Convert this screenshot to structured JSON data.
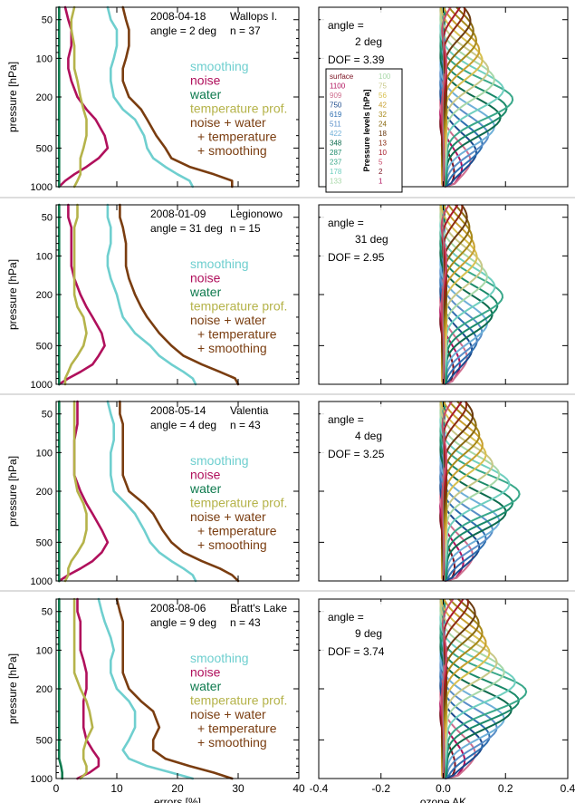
{
  "colors": {
    "smoothing": "#6fcfcf",
    "noise": "#b0105c",
    "water": "#0e7a4e",
    "temperature": "#b5b34a",
    "total": "#7a3d10",
    "ak_palette": [
      "#7a1020",
      "#b0105c",
      "#cf6f8f",
      "#1a4a8c",
      "#2f6fb0",
      "#5a8fc8",
      "#6fb0d8",
      "#0e6b4e",
      "#1b8a6a",
      "#3aa88a",
      "#6fcfbf",
      "#a8d8a8",
      "#c8c888",
      "#d8c050",
      "#c8a030",
      "#a88a1a",
      "#8a6a10",
      "#6a3a10",
      "#8a2a10",
      "#a81a2a",
      "#c84a6a"
    ]
  },
  "left_axis": {
    "ylabel": "pressure [hPa]",
    "yticks": [
      "50",
      "100",
      "200",
      "500",
      "1000"
    ],
    "xlabel": "errors [%]",
    "xticks": [
      "0",
      "10",
      "20",
      "30",
      "40"
    ]
  },
  "right_axis": {
    "xlabel": "ozone AK",
    "xticks": [
      "-0.4",
      "-0.2",
      "0.0",
      "0.2",
      "0.4"
    ]
  },
  "legend": {
    "smoothing": "smoothing",
    "noise": "noise",
    "water": "water",
    "temperature": "temperature prof.",
    "total_1": "noise + water",
    "total_2": "+ temperature",
    "total_3": "+ smoothing"
  },
  "pressure_legend": {
    "title": "Pressure levels [hPa]",
    "col1": [
      "surface",
      "1100",
      "909",
      "750",
      "619",
      "511",
      "422",
      "348",
      "287",
      "237",
      "178",
      "133"
    ],
    "col2": [
      "100",
      "75",
      "56",
      "42",
      "32",
      "24",
      "18",
      "13",
      "10",
      "5",
      "2",
      "1"
    ]
  },
  "panels": [
    {
      "date": "2008-04-18",
      "station": "Wallops I.",
      "angle_line": "angle = 2 deg",
      "n": "n = 37",
      "ak_angle": "angle =",
      "ak_deg": "2 deg",
      "dof": "DOF =  3.39"
    },
    {
      "date": "2008-01-09",
      "station": "Legionowo",
      "angle_line": "angle = 31 deg",
      "n": "n = 15",
      "ak_angle": "angle =",
      "ak_deg": "31 deg",
      "dof": "DOF =  2.95"
    },
    {
      "date": "2008-05-14",
      "station": "Valentia",
      "angle_line": "angle = 4 deg",
      "n": "n = 43",
      "ak_angle": "angle =",
      "ak_deg": "4 deg",
      "dof": "DOF =  3.25"
    },
    {
      "date": "2008-08-06",
      "station": "Bratt's Lake",
      "angle_line": "angle = 9 deg",
      "n": "n = 43",
      "ak_angle": "angle =",
      "ak_deg": "9 deg",
      "dof": "DOF =  3.74"
    }
  ],
  "chart_data": [
    {
      "type": "line",
      "title": "2008-04-18 Wallops I.",
      "xlim": [
        0,
        40
      ],
      "y_scale": "log",
      "ylim": [
        1000,
        40
      ],
      "y": [
        1000,
        900,
        800,
        700,
        600,
        500,
        400,
        300,
        250,
        200,
        150,
        120,
        100,
        80,
        60,
        50,
        40
      ],
      "series": [
        {
          "name": "smoothing",
          "x": [
            22.5,
            22,
            20,
            18,
            16,
            15,
            14.5,
            13,
            11,
            9.5,
            9,
            9,
            9.5,
            10,
            10,
            9,
            8.5
          ]
        },
        {
          "name": "noise",
          "x": [
            0.5,
            1.5,
            3,
            5,
            7,
            8.5,
            8,
            6.5,
            5,
            3.5,
            2.5,
            2,
            2,
            2.5,
            2.5,
            2,
            1.5
          ]
        },
        {
          "name": "water",
          "x": [
            0.5,
            0.5,
            0.5,
            0.5,
            0.5,
            0.5,
            0.5,
            0.5,
            0.5,
            0.5,
            0.5,
            0.5,
            0.5,
            0.5,
            0.5,
            0.5,
            0.5
          ]
        },
        {
          "name": "temperature prof.",
          "x": [
            3,
            3.5,
            4,
            4,
            4,
            4.5,
            5,
            5,
            4.5,
            4,
            3.5,
            3,
            3,
            3,
            2.5,
            2.5,
            3
          ]
        },
        {
          "name": "noise + water + temperature + smoothing",
          "x": [
            29,
            29,
            26,
            22,
            19,
            18,
            16.5,
            15,
            14,
            12,
            11,
            11,
            11.5,
            12,
            12,
            11.5,
            11
          ]
        }
      ]
    },
    {
      "type": "line",
      "title": "2008-01-09 Legionowo",
      "xlim": [
        0,
        40
      ],
      "y_scale": "log",
      "ylim": [
        1000,
        40
      ],
      "y": [
        1000,
        900,
        800,
        700,
        600,
        500,
        400,
        300,
        250,
        200,
        150,
        120,
        100,
        80,
        60,
        50,
        40
      ],
      "series": [
        {
          "name": "smoothing",
          "x": [
            23,
            22.5,
            21,
            19,
            17,
            15.5,
            13,
            11,
            10.5,
            10,
            9,
            8.5,
            8.5,
            9,
            9,
            8.5,
            8.5
          ]
        },
        {
          "name": "noise",
          "x": [
            0.5,
            2,
            4,
            6,
            7,
            8,
            7.5,
            6,
            5,
            4,
            3,
            2.5,
            2.5,
            2.5,
            2.5,
            2,
            2
          ]
        },
        {
          "name": "water",
          "x": [
            0.5,
            0.5,
            0.5,
            0.5,
            0.5,
            0.5,
            0.5,
            0.5,
            0.5,
            0.5,
            0.5,
            0.5,
            0.5,
            0.5,
            0.5,
            0.5,
            0.5
          ]
        },
        {
          "name": "temperature prof.",
          "x": [
            1.5,
            1.5,
            2,
            2.5,
            3.5,
            4.5,
            5,
            4.5,
            3.5,
            3,
            3,
            3,
            3,
            3,
            3,
            3.5,
            3.5
          ]
        },
        {
          "name": "noise + water + temperature + smoothing",
          "x": [
            30,
            29.5,
            27,
            24,
            21,
            19,
            17,
            15,
            14,
            13,
            12,
            11.5,
            11.5,
            11.5,
            11,
            10.5,
            10.5
          ]
        }
      ]
    },
    {
      "type": "line",
      "title": "2008-05-14 Valentia",
      "xlim": [
        0,
        40
      ],
      "y_scale": "log",
      "ylim": [
        1000,
        40
      ],
      "y": [
        1000,
        900,
        800,
        700,
        600,
        500,
        400,
        300,
        250,
        200,
        150,
        120,
        100,
        80,
        60,
        50,
        40
      ],
      "series": [
        {
          "name": "smoothing",
          "x": [
            23,
            22.5,
            21,
            19,
            17,
            15.5,
            14.5,
            13,
            11.5,
            9.5,
            9,
            9,
            9,
            9.5,
            9.5,
            9,
            8.5
          ]
        },
        {
          "name": "noise",
          "x": [
            0.5,
            2,
            4,
            6,
            7.5,
            8.5,
            7.5,
            6,
            5,
            4,
            3,
            3,
            3,
            3,
            3.5,
            3.5,
            3.5
          ]
        },
        {
          "name": "water",
          "x": [
            0.5,
            0.5,
            0.5,
            0.5,
            0.5,
            0.5,
            0.5,
            0.5,
            0.5,
            0.5,
            0.5,
            0.5,
            0.5,
            0.5,
            0.5,
            0.5,
            0.5
          ]
        },
        {
          "name": "temperature prof.",
          "x": [
            1.5,
            2,
            2,
            2.5,
            3.5,
            4.5,
            5,
            5,
            4.5,
            3.5,
            3,
            3,
            3,
            3,
            3,
            3,
            3
          ]
        },
        {
          "name": "noise + water + temperature + smoothing",
          "x": [
            30,
            29,
            27,
            24,
            21,
            19,
            17.5,
            16,
            14.5,
            12,
            11,
            11,
            11,
            11,
            11,
            10.5,
            10.5
          ]
        }
      ]
    },
    {
      "type": "line",
      "title": "2008-08-06 Bratt's Lake",
      "xlim": [
        0,
        40
      ],
      "y_scale": "log",
      "ylim": [
        1000,
        40
      ],
      "y": [
        1000,
        900,
        800,
        700,
        600,
        500,
        400,
        300,
        250,
        200,
        150,
        120,
        100,
        80,
        60,
        50,
        40
      ],
      "series": [
        {
          "name": "smoothing",
          "x": [
            22.5,
            19,
            15,
            12,
            11,
            12,
            13,
            13,
            12,
            10,
            9,
            9,
            9.5,
            9,
            8,
            7.5,
            7
          ]
        },
        {
          "name": "noise",
          "x": [
            3.5,
            5.5,
            7,
            7,
            6,
            5,
            4.5,
            4.5,
            4.5,
            5,
            5,
            4.5,
            4,
            4,
            4,
            3.5,
            3.5
          ]
        },
        {
          "name": "water",
          "x": [
            1,
            1,
            0.8,
            0.5,
            0.5,
            0.5,
            0.5,
            0.5,
            0.5,
            0.5,
            0.5,
            0.5,
            0.5,
            0.5,
            0.5,
            0.5,
            0.5
          ]
        },
        {
          "name": "temperature prof.",
          "x": [
            4,
            5,
            5,
            4.5,
            4.5,
            5,
            6,
            5.5,
            5,
            4,
            3,
            3,
            3,
            3,
            3,
            3,
            3
          ]
        },
        {
          "name": "noise + water + temperature + smoothing",
          "x": [
            29,
            26,
            22,
            18,
            16,
            16,
            17,
            16,
            14,
            12,
            11,
            11,
            11,
            11,
            11,
            10.5,
            10
          ]
        }
      ]
    }
  ]
}
